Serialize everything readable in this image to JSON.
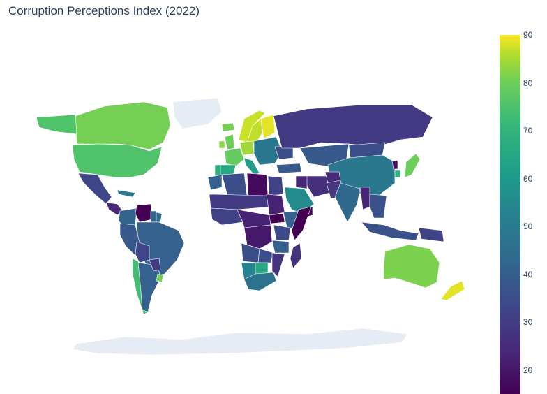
{
  "title": "Corruption Perceptions Index (2022)",
  "colorscale": [
    "#440154",
    "#482878",
    "#3e4989",
    "#31688e",
    "#26828e",
    "#1f9e89",
    "#35b779",
    "#6ece58",
    "#b5de2b",
    "#fde725"
  ],
  "no_data_color": "#e5ecf6",
  "colorbar": {
    "min": 15,
    "max": 90,
    "ticks": [
      "90",
      "80",
      "70",
      "60",
      "50",
      "40",
      "30",
      "20"
    ]
  },
  "chart_data": {
    "type": "choropleth",
    "title": "Corruption Perceptions Index (2022)",
    "colorbar_range": [
      15,
      90
    ],
    "regions": [
      {
        "name": "Greenland",
        "value": null
      },
      {
        "name": "Canada",
        "value": 74
      },
      {
        "name": "Alaska",
        "value": 69
      },
      {
        "name": "United States",
        "value": 69
      },
      {
        "name": "Mexico",
        "value": 31
      },
      {
        "name": "Central America",
        "value": 24
      },
      {
        "name": "Cuba",
        "value": 45
      },
      {
        "name": "Colombia",
        "value": 39
      },
      {
        "name": "Venezuela",
        "value": 14
      },
      {
        "name": "Guyana",
        "value": 40
      },
      {
        "name": "Suriname",
        "value": 40
      },
      {
        "name": "Brazil",
        "value": 38
      },
      {
        "name": "Peru",
        "value": 36
      },
      {
        "name": "Bolivia",
        "value": 31
      },
      {
        "name": "Chile",
        "value": 67
      },
      {
        "name": "Argentina",
        "value": 38
      },
      {
        "name": "Paraguay",
        "value": 28
      },
      {
        "name": "Uruguay",
        "value": 74
      },
      {
        "name": "Iceland",
        "value": 74
      },
      {
        "name": "Norway",
        "value": 84
      },
      {
        "name": "Sweden",
        "value": 83
      },
      {
        "name": "Finland",
        "value": 87
      },
      {
        "name": "United Kingdom",
        "value": 73
      },
      {
        "name": "Ireland",
        "value": 77
      },
      {
        "name": "France",
        "value": 72
      },
      {
        "name": "Spain",
        "value": 60
      },
      {
        "name": "Portugal",
        "value": 62
      },
      {
        "name": "Germany",
        "value": 79
      },
      {
        "name": "Italy",
        "value": 56
      },
      {
        "name": "Eastern Europe",
        "value": 45
      },
      {
        "name": "Ukraine",
        "value": 33
      },
      {
        "name": "Turkey",
        "value": 36
      },
      {
        "name": "Russia",
        "value": 28
      },
      {
        "name": "Kazakhstan",
        "value": 36
      },
      {
        "name": "Mongolia",
        "value": 33
      },
      {
        "name": "China",
        "value": 45
      },
      {
        "name": "North Korea",
        "value": 17
      },
      {
        "name": "South Korea",
        "value": 63
      },
      {
        "name": "Japan",
        "value": 73
      },
      {
        "name": "Iran",
        "value": 25
      },
      {
        "name": "Iraq",
        "value": 23
      },
      {
        "name": "Saudi Arabia",
        "value": 51
      },
      {
        "name": "Yemen",
        "value": 16
      },
      {
        "name": "Afghanistan",
        "value": 24
      },
      {
        "name": "Pakistan",
        "value": 27
      },
      {
        "name": "India",
        "value": 40
      },
      {
        "name": "Myanmar",
        "value": 23
      },
      {
        "name": "Southeast Asia",
        "value": 34
      },
      {
        "name": "Indonesia",
        "value": 34
      },
      {
        "name": "Papua New Guinea",
        "value": 30
      },
      {
        "name": "Australia",
        "value": 75
      },
      {
        "name": "New Zealand",
        "value": 87
      },
      {
        "name": "Morocco",
        "value": 38
      },
      {
        "name": "Algeria",
        "value": 33
      },
      {
        "name": "Libya",
        "value": 17
      },
      {
        "name": "Egypt",
        "value": 30
      },
      {
        "name": "Sahel",
        "value": 28
      },
      {
        "name": "West Africa",
        "value": 30
      },
      {
        "name": "Sudan",
        "value": 22
      },
      {
        "name": "South Sudan",
        "value": 13
      },
      {
        "name": "Ethiopia",
        "value": 38
      },
      {
        "name": "Somalia",
        "value": 12
      },
      {
        "name": "Central Africa",
        "value": 22
      },
      {
        "name": "DR Congo",
        "value": 20
      },
      {
        "name": "Kenya",
        "value": 32
      },
      {
        "name": "Tanzania",
        "value": 38
      },
      {
        "name": "Angola",
        "value": 33
      },
      {
        "name": "Zambia",
        "value": 33
      },
      {
        "name": "Namibia",
        "value": 49
      },
      {
        "name": "Botswana",
        "value": 60
      },
      {
        "name": "South Africa",
        "value": 43
      },
      {
        "name": "Mozambique",
        "value": 26
      },
      {
        "name": "Madagascar",
        "value": 26
      },
      {
        "name": "Antarctica",
        "value": null
      }
    ]
  }
}
